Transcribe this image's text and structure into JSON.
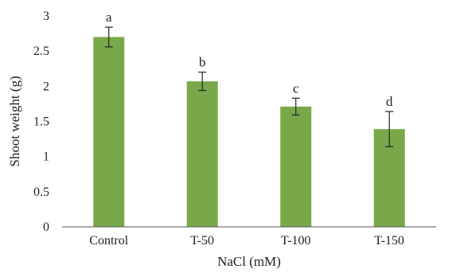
{
  "chart_data": {
    "type": "bar",
    "title": "",
    "xlabel": "NaCl (mM)",
    "ylabel": "Shoot weight (g)",
    "categories": [
      "Control",
      "T-50",
      "T-100",
      "T-150"
    ],
    "values": [
      2.7,
      2.07,
      1.71,
      1.39
    ],
    "error": [
      0.14,
      0.13,
      0.12,
      0.25
    ],
    "significance_letters": [
      "a",
      "b",
      "c",
      "d"
    ],
    "ylim": [
      0,
      3
    ],
    "yticks": [
      "0",
      "0.5",
      "1",
      "1.5",
      "2",
      "2.5",
      "3"
    ],
    "grid": false,
    "legend": "none",
    "bar_color": "#78a84a"
  }
}
